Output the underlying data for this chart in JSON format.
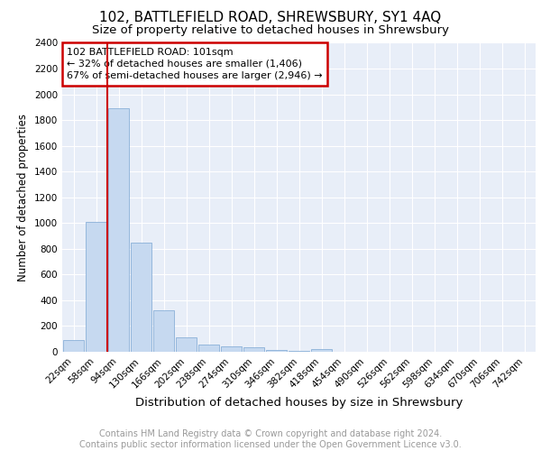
{
  "title1": "102, BATTLEFIELD ROAD, SHREWSBURY, SY1 4AQ",
  "title2": "Size of property relative to detached houses in Shrewsbury",
  "xlabel": "Distribution of detached houses by size in Shrewsbury",
  "ylabel": "Number of detached properties",
  "bar_labels": [
    "22sqm",
    "58sqm",
    "94sqm",
    "130sqm",
    "166sqm",
    "202sqm",
    "238sqm",
    "274sqm",
    "310sqm",
    "346sqm",
    "382sqm",
    "418sqm",
    "454sqm",
    "490sqm",
    "526sqm",
    "562sqm",
    "598sqm",
    "634sqm",
    "670sqm",
    "706sqm",
    "742sqm"
  ],
  "bar_values": [
    90,
    1010,
    1890,
    850,
    320,
    115,
    55,
    45,
    35,
    15,
    5,
    20,
    0,
    0,
    0,
    0,
    0,
    0,
    0,
    0,
    0
  ],
  "bar_color": "#c6d9f0",
  "bar_edge_color": "#8ab0d8",
  "vline_x": 1.5,
  "vline_color": "#cc0000",
  "annotation_text": "102 BATTLEFIELD ROAD: 101sqm\n← 32% of detached houses are smaller (1,406)\n67% of semi-detached houses are larger (2,946) →",
  "annotation_box_color": "#ffffff",
  "annotation_box_edge": "#cc0000",
  "ylim": [
    0,
    2400
  ],
  "yticks": [
    0,
    200,
    400,
    600,
    800,
    1000,
    1200,
    1400,
    1600,
    1800,
    2000,
    2200,
    2400
  ],
  "background_color": "#e8eef8",
  "grid_color": "#ffffff",
  "footer_line1": "Contains HM Land Registry data © Crown copyright and database right 2024.",
  "footer_line2": "Contains public sector information licensed under the Open Government Licence v3.0.",
  "title1_fontsize": 11,
  "title2_fontsize": 9.5,
  "xlabel_fontsize": 9.5,
  "ylabel_fontsize": 8.5,
  "tick_fontsize": 7.5,
  "annotation_fontsize": 8,
  "footer_fontsize": 7
}
